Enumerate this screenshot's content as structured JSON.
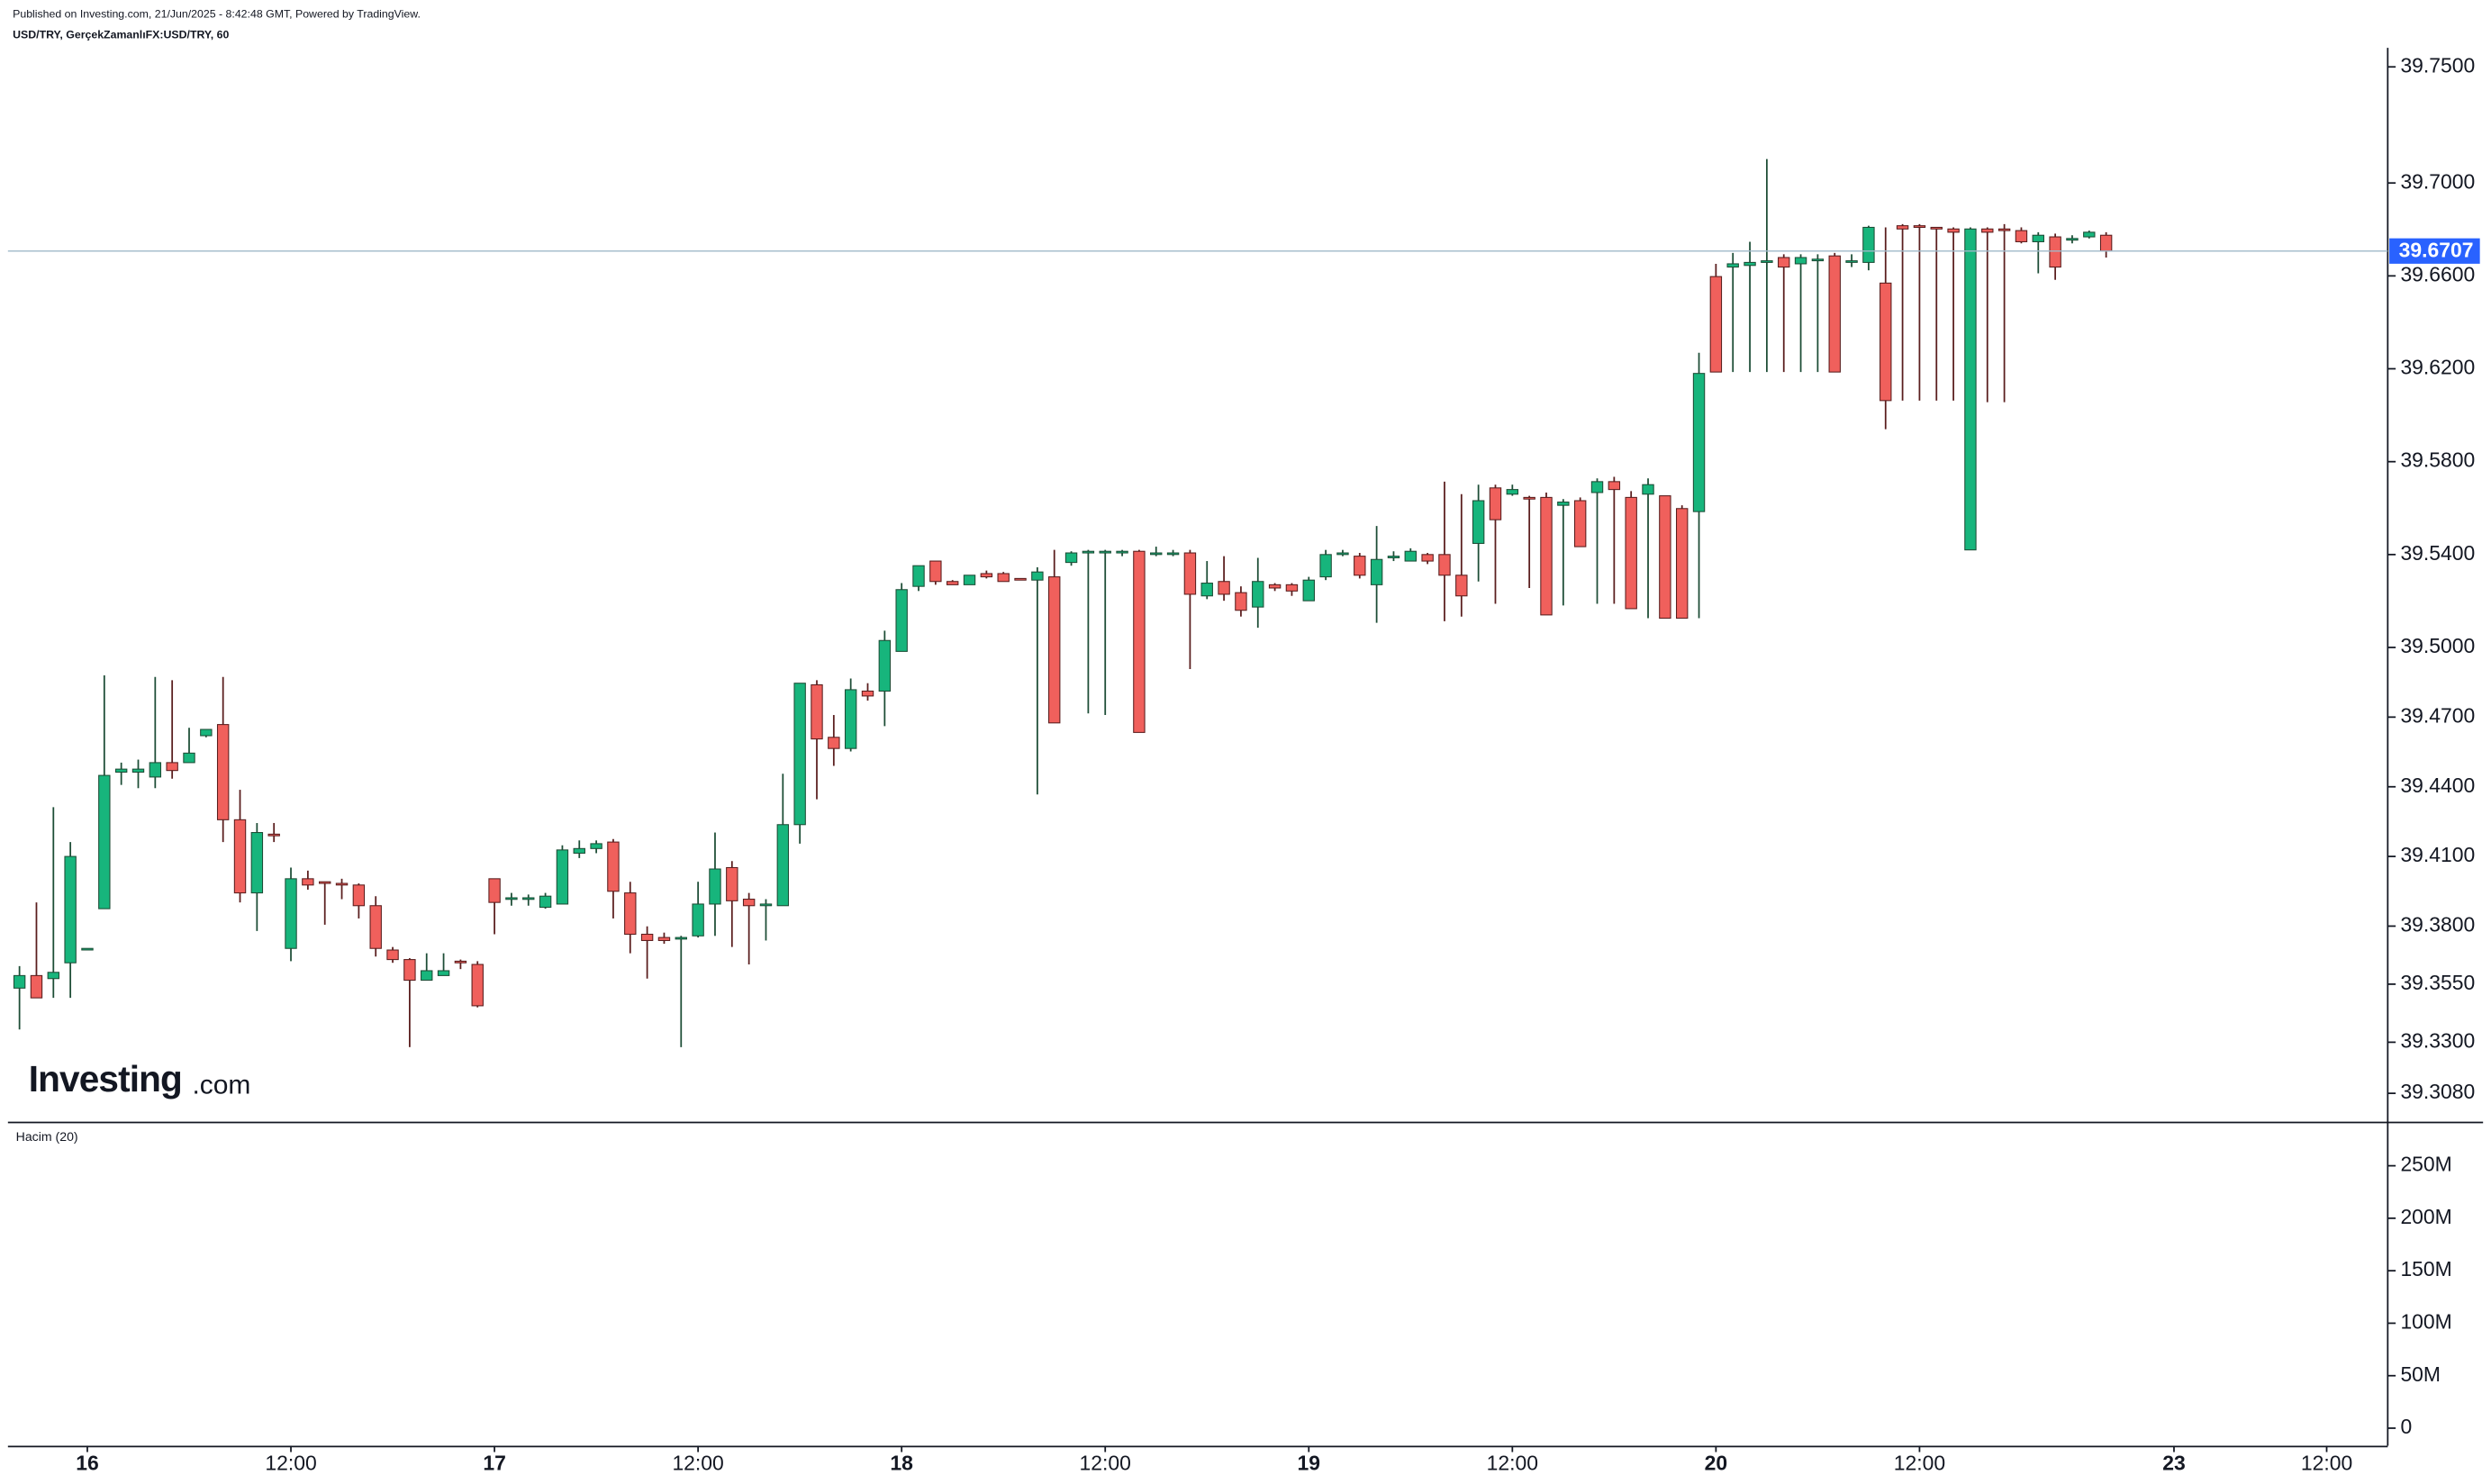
{
  "header": {
    "published": "Published on Investing.com, 21/Jun/2025 - 8:42:48 GMT, Powered by TradingView.",
    "symbol": "USD/TRY, GerçekZamanlıFX:USD/TRY, 60",
    "logo": "Investing",
    "logo_suffix": ".com"
  },
  "chart_data": {
    "type": "candlestick",
    "up_color": "#17b57c",
    "down_color": "#f0605c",
    "up_wick_color": "#1d4d36",
    "down_wick_color": "#5a1e1e",
    "grid": false,
    "x": [
      -4,
      -3,
      -2,
      -1,
      0,
      1,
      2,
      3,
      4,
      5,
      6,
      7,
      8,
      9,
      10,
      11,
      12,
      13,
      14,
      15,
      16,
      17,
      18,
      19,
      20,
      21,
      22,
      23,
      24,
      25,
      26,
      27,
      28,
      29,
      30,
      31,
      32,
      33,
      34,
      35,
      36,
      37,
      38,
      39,
      40,
      41,
      42,
      43,
      44,
      45,
      46,
      47,
      48,
      49,
      50,
      51,
      52,
      53,
      54,
      55,
      56,
      57,
      58,
      59,
      60,
      61,
      62,
      63,
      64,
      65,
      66,
      67,
      68,
      69,
      70,
      71,
      72,
      73,
      74,
      75,
      76,
      77,
      78,
      79,
      80,
      81,
      82,
      83,
      84,
      85,
      86,
      87,
      88,
      89,
      90,
      91,
      92,
      93,
      94,
      95,
      96,
      97,
      98,
      99,
      100,
      101,
      102,
      103,
      104,
      105,
      106,
      107,
      108,
      109,
      110,
      111,
      112,
      113,
      114,
      115,
      116,
      117,
      118,
      119
    ],
    "open": [
      39.3533,
      39.3587,
      39.3574,
      39.3642,
      39.3704,
      39.3875,
      39.4463,
      39.4463,
      39.4442,
      39.4504,
      39.4504,
      39.462,
      39.4668,
      39.4258,
      39.3943,
      39.4196,
      39.3704,
      39.4004,
      39.3991,
      39.3984,
      39.3977,
      39.3888,
      39.3697,
      39.3656,
      39.3567,
      39.3587,
      39.3649,
      39.3635,
      39.4004,
      39.3916,
      39.3916,
      39.3881,
      39.3895,
      39.4114,
      39.4134,
      39.4162,
      39.3943,
      39.3765,
      39.3751,
      39.3745,
      39.3758,
      39.3895,
      39.4052,
      39.3916,
      39.3888,
      39.3888,
      39.4237,
      39.4839,
      39.4613,
      39.4565,
      39.4812,
      39.4812,
      39.4983,
      39.5263,
      39.5372,
      39.5284,
      39.527,
      39.5318,
      39.5318,
      39.5297,
      39.529,
      39.5304,
      39.5366,
      39.5407,
      39.5407,
      39.5407,
      39.5414,
      39.5407,
      39.5407,
      39.5407,
      39.5222,
      39.5284,
      39.5236,
      39.5174,
      39.527,
      39.527,
      39.5201,
      39.5304,
      39.54,
      39.5393,
      39.527,
      39.5386,
      39.5372,
      39.54,
      39.54,
      39.5311,
      39.5448,
      39.5687,
      39.566,
      39.5646,
      39.5646,
      39.5612,
      39.5632,
      39.5667,
      39.5714,
      39.5646,
      39.566,
      39.5653,
      39.5598,
      39.5585,
      39.6597,
      39.6638,
      39.6645,
      39.6658,
      39.6679,
      39.6652,
      39.6672,
      39.6686,
      39.6665,
      39.6658,
      39.6569,
      39.6816,
      39.6816,
      39.6809,
      39.6802,
      39.542,
      39.6802,
      39.6802,
      39.6795,
      39.6747,
      39.6768,
      39.6754,
      39.6768,
      39.6775
    ],
    "high": [
      39.3628,
      39.3902,
      39.4312,
      39.4162,
      39.3704,
      39.488,
      39.4504,
      39.4517,
      39.4873,
      39.4859,
      39.4654,
      39.4647,
      39.4873,
      39.4387,
      39.4244,
      39.4244,
      39.4052,
      39.4039,
      39.3991,
      39.4004,
      39.3984,
      39.3929,
      39.371,
      39.3662,
      39.3683,
      39.3683,
      39.3656,
      39.3649,
      39.4004,
      39.3943,
      39.3936,
      39.3943,
      39.4148,
      39.4169,
      39.4169,
      39.4175,
      39.3991,
      39.3799,
      39.3772,
      39.3758,
      39.3991,
      39.4203,
      39.408,
      39.3943,
      39.3916,
      39.4456,
      39.4846,
      39.4859,
      39.4709,
      39.4866,
      39.4846,
      39.5072,
      39.5277,
      39.5352,
      39.5372,
      39.529,
      39.5311,
      39.5331,
      39.5325,
      39.5297,
      39.5345,
      39.542,
      39.5414,
      39.542,
      39.542,
      39.542,
      39.542,
      39.5434,
      39.542,
      39.542,
      39.5372,
      39.5393,
      39.5263,
      39.5386,
      39.5277,
      39.5277,
      39.5304,
      39.542,
      39.542,
      39.5407,
      39.5523,
      39.5414,
      39.5427,
      39.5407,
      39.5714,
      39.566,
      39.5701,
      39.5701,
      39.5701,
      39.5653,
      39.5667,
      39.5639,
      39.5646,
      39.5728,
      39.5735,
      39.5673,
      39.5728,
      39.5653,
      39.5612,
      39.6269,
      39.6652,
      39.6699,
      39.6747,
      39.7103,
      39.6693,
      39.6693,
      39.6693,
      39.6699,
      39.6693,
      39.6816,
      39.6809,
      39.6823,
      39.6823,
      39.6809,
      39.6809,
      39.6809,
      39.6809,
      39.6823,
      39.6809,
      39.6788,
      39.6782,
      39.6775,
      39.6795,
      39.6788
    ],
    "low": [
      39.3355,
      39.3491,
      39.3491,
      39.3491,
      39.3704,
      39.3875,
      39.4408,
      39.4394,
      39.4394,
      39.4435,
      39.4504,
      39.4613,
      39.4162,
      39.3902,
      39.3779,
      39.4162,
      39.3649,
      39.3957,
      39.3806,
      39.3916,
      39.3833,
      39.3669,
      39.3642,
      39.3279,
      39.3567,
      39.3587,
      39.3615,
      39.345,
      39.3765,
      39.3888,
      39.3888,
      39.3875,
      39.3895,
      39.4093,
      39.4114,
      39.3833,
      39.3683,
      39.3574,
      39.3724,
      39.3279,
      39.3751,
      39.3758,
      39.371,
      39.3635,
      39.3738,
      39.3888,
      39.4155,
      39.4346,
      39.449,
      39.4552,
      39.4771,
      39.4661,
      39.4983,
      39.5243,
      39.527,
      39.527,
      39.527,
      39.5297,
      39.5284,
      39.529,
      39.4367,
      39.4675,
      39.5352,
      39.4716,
      39.4709,
      39.5393,
      39.4634,
      39.5393,
      39.5393,
      39.4907,
      39.5208,
      39.5201,
      39.5133,
      39.5085,
      39.5243,
      39.5222,
      39.5201,
      39.529,
      39.5393,
      39.5297,
      39.5106,
      39.5372,
      39.5372,
      39.5359,
      39.5113,
      39.5133,
      39.5284,
      39.5188,
      39.5653,
      39.5256,
      39.514,
      39.5181,
      39.5434,
      39.5188,
      39.5188,
      39.5167,
      39.5126,
      39.5126,
      39.5126,
      39.5126,
      39.6186,
      39.6186,
      39.6186,
      39.6186,
      39.6186,
      39.6186,
      39.6186,
      39.6186,
      39.6638,
      39.6624,
      39.594,
      39.6063,
      39.6063,
      39.6063,
      39.6063,
      39.542,
      39.6056,
      39.6056,
      39.674,
      39.6611,
      39.6583,
      39.674,
      39.6761,
      39.6679
    ],
    "close": [
      39.3587,
      39.3491,
      39.3601,
      39.41,
      39.3704,
      39.4449,
      39.4476,
      39.4476,
      39.4504,
      39.447,
      39.4545,
      39.4647,
      39.4258,
      39.3943,
      39.4203,
      39.4189,
      39.4004,
      39.3977,
      39.3984,
      39.3977,
      39.3888,
      39.3704,
      39.3656,
      39.3567,
      39.3608,
      39.3608,
      39.3642,
      39.3457,
      39.3902,
      39.3922,
      39.3922,
      39.3929,
      39.4128,
      39.4134,
      39.4155,
      39.395,
      39.3765,
      39.3738,
      39.3738,
      39.3751,
      39.3895,
      39.4046,
      39.3909,
      39.3888,
      39.3895,
      39.4237,
      39.4846,
      39.4606,
      39.4565,
      39.4818,
      39.4791,
      39.503,
      39.5249,
      39.5352,
      39.5284,
      39.527,
      39.5311,
      39.5304,
      39.5284,
      39.529,
      39.5325,
      39.4675,
      39.5407,
      39.5414,
      39.5414,
      39.5414,
      39.4634,
      39.5407,
      39.5407,
      39.5229,
      39.5277,
      39.5229,
      39.516,
      39.5284,
      39.5256,
      39.5243,
      39.529,
      39.54,
      39.5407,
      39.5311,
      39.5379,
      39.5393,
      39.5414,
      39.5372,
      39.5311,
      39.5222,
      39.5632,
      39.555,
      39.568,
      39.5639,
      39.514,
      39.5626,
      39.5434,
      39.5714,
      39.568,
      39.5167,
      39.5701,
      39.5126,
      39.5126,
      39.618,
      39.6186,
      39.6652,
      39.6658,
      39.6665,
      39.6638,
      39.6679,
      39.6672,
      39.6186,
      39.6665,
      39.6809,
      39.6063,
      39.6802,
      39.6809,
      39.6802,
      39.6788,
      39.6802,
      39.6788,
      39.6795,
      39.6747,
      39.6775,
      39.6638,
      39.6761,
      39.6788,
      39.6707
    ],
    "last_price": 39.6707,
    "last_price_color": "#2962ff",
    "xlim": [
      -4.68,
      135.6
    ],
    "xticks": [
      {
        "value": 0,
        "label": "16"
      },
      {
        "value": 12,
        "label": "12:00"
      },
      {
        "value": 24,
        "label": "17"
      },
      {
        "value": 36,
        "label": "12:00"
      },
      {
        "value": 48,
        "label": "18"
      },
      {
        "value": 60,
        "label": "12:00"
      },
      {
        "value": 72,
        "label": "19"
      },
      {
        "value": 84,
        "label": "12:00"
      },
      {
        "value": 96,
        "label": "20"
      },
      {
        "value": 108,
        "label": "12:00"
      },
      {
        "value": 123,
        "label": "23"
      },
      {
        "value": 132,
        "label": "12:00"
      }
    ],
    "ylim": [
      39.2958,
      39.7582
    ],
    "yticks": [
      {
        "value": 39.75,
        "label": "39.7500"
      },
      {
        "value": 39.7,
        "label": "39.7000"
      },
      {
        "value": 39.66,
        "label": "39.6600"
      },
      {
        "value": 39.62,
        "label": "39.6200"
      },
      {
        "value": 39.58,
        "label": "39.5800"
      },
      {
        "value": 39.54,
        "label": "39.5400"
      },
      {
        "value": 39.5,
        "label": "39.5000"
      },
      {
        "value": 39.47,
        "label": "39.4700"
      },
      {
        "value": 39.44,
        "label": "39.4400"
      },
      {
        "value": 39.41,
        "label": "39.4100"
      },
      {
        "value": 39.38,
        "label": "39.3800"
      },
      {
        "value": 39.355,
        "label": "39.3550"
      },
      {
        "value": 39.33,
        "label": "39.3300"
      },
      {
        "value": 39.308,
        "label": "39.3080"
      }
    ],
    "volume_title": "Hacim (20)",
    "volume_ylim": [
      -16700000,
      289000000
    ],
    "volume_yticks": [
      {
        "value": 250000000,
        "label": "250M"
      },
      {
        "value": 200000000,
        "label": "200M"
      },
      {
        "value": 150000000,
        "label": "150M"
      },
      {
        "value": 100000000,
        "label": "100M"
      },
      {
        "value": 50000000,
        "label": "50M"
      },
      0
    ]
  }
}
